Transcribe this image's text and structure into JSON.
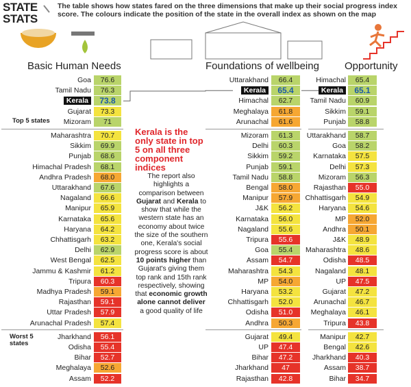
{
  "header": {
    "title": "STATE STATS",
    "description": "The table shows how states fared on the three dimensions that make up their social progress index score. The colours indicate the position of the state in the overall index as shown on the map"
  },
  "group_labels": {
    "top": "Top 5 states",
    "worst": "Worst 5 states"
  },
  "note": {
    "headline": "Kerala is the only state in top 5 on all three component indices",
    "body": [
      {
        "text": "The report also highlights a comparison between ",
        "bold": false
      },
      {
        "text": "Gujarat",
        "bold": true
      },
      {
        "text": " and ",
        "bold": false
      },
      {
        "text": "Kerala",
        "bold": true
      },
      {
        "text": " to show that while the western state has an economy about twice the size of the southern one, Kerala's social progress score is about ",
        "bold": false
      },
      {
        "text": "10 points higher",
        "bold": true
      },
      {
        "text": " than Gujarat's giving them top rank and 15th rank respectively, showing that ",
        "bold": false
      },
      {
        "text": "economic growth alone cannot deliver",
        "bold": true
      },
      {
        "text": " a good quality of life",
        "bold": false
      }
    ]
  },
  "columns": [
    {
      "title": "Basic Human Needs",
      "rows": [
        {
          "state": "Goa",
          "score": "76.6",
          "color": "#b9d46a"
        },
        {
          "state": "Tamil Nadu",
          "score": "76.3",
          "color": "#b9d46a"
        },
        {
          "state": "Kerala",
          "score": "73.8",
          "color": "#b9d46a",
          "highlight": true
        },
        {
          "state": "Gujarat",
          "score": "73.3",
          "color": "#f4e33f"
        },
        {
          "state": "Mizoram",
          "score": "71",
          "color": "#b9d46a"
        },
        {
          "state": "Maharashtra",
          "score": "70.7",
          "color": "#f4e33f"
        },
        {
          "state": "Sikkim",
          "score": "69.9",
          "color": "#b9d46a"
        },
        {
          "state": "Punjab",
          "score": "68.6",
          "color": "#b9d46a"
        },
        {
          "state": "Himachal Pradesh",
          "score": "68.1",
          "color": "#b9d46a"
        },
        {
          "state": "Andhra Pradesh",
          "score": "68.0",
          "color": "#f6a733"
        },
        {
          "state": "Uttarakhand",
          "score": "67.6",
          "color": "#b9d46a"
        },
        {
          "state": "Nagaland",
          "score": "66.6",
          "color": "#f4e33f"
        },
        {
          "state": "Manipur",
          "score": "65.9",
          "color": "#f4e33f"
        },
        {
          "state": "Karnataka",
          "score": "65.6",
          "color": "#f4e33f"
        },
        {
          "state": "Haryana",
          "score": "64.2",
          "color": "#f4e33f"
        },
        {
          "state": "Chhattisgarh",
          "score": "63.2",
          "color": "#f4e33f"
        },
        {
          "state": "Delhi",
          "score": "62.9",
          "color": "#b9d46a"
        },
        {
          "state": "West Bengal",
          "score": "62.5",
          "color": "#f4e33f"
        },
        {
          "state": "Jammu & Kashmir",
          "score": "61.2",
          "color": "#f4e33f"
        },
        {
          "state": "Tripura",
          "score": "60.3",
          "color": "#e63329"
        },
        {
          "state": "Madhya Pradesh",
          "score": "59.1",
          "color": "#f6a733"
        },
        {
          "state": "Rajasthan",
          "score": "59.1",
          "color": "#e63329"
        },
        {
          "state": "Uttar Pradesh",
          "score": "57.9",
          "color": "#e63329"
        },
        {
          "state": "Arunachal Pradesh",
          "score": "57.4",
          "color": "#f4e33f"
        },
        {
          "state": "Jharkhand",
          "score": "56.1",
          "color": "#e63329"
        },
        {
          "state": "Odisha",
          "score": "55.4",
          "color": "#e63329"
        },
        {
          "state": "Bihar",
          "score": "52.7",
          "color": "#e63329"
        },
        {
          "state": "Meghalaya",
          "score": "52.6",
          "color": "#f6a733"
        },
        {
          "state": "Assam",
          "score": "52.2",
          "color": "#e63329"
        }
      ]
    },
    {
      "title": "Foundations of wellbeing",
      "rows": [
        {
          "state": "Uttarakhand",
          "score": "66.4",
          "color": "#b9d46a"
        },
        {
          "state": "Kerala",
          "score": "65.4",
          "color": "#b9d46a",
          "highlight": true
        },
        {
          "state": "Himachal",
          "score": "62.7",
          "color": "#b9d46a"
        },
        {
          "state": "Meghalaya",
          "score": "61.8",
          "color": "#f6a733"
        },
        {
          "state": "Arunachal",
          "score": "61.6",
          "color": "#f6a733"
        },
        {
          "state": "Mizoram",
          "score": "61.3",
          "color": "#b9d46a"
        },
        {
          "state": "Delhi",
          "score": "60.3",
          "color": "#b9d46a"
        },
        {
          "state": "Sikkim",
          "score": "59.2",
          "color": "#b9d46a"
        },
        {
          "state": "Punjab",
          "score": "59.1",
          "color": "#b9d46a"
        },
        {
          "state": "Tamil Nadu",
          "score": "58.8",
          "color": "#b9d46a"
        },
        {
          "state": "Bengal",
          "score": "58.0",
          "color": "#f6a733"
        },
        {
          "state": "Manipur",
          "score": "57.9",
          "color": "#f6a733"
        },
        {
          "state": "J&K",
          "score": "56.2",
          "color": "#f4e33f"
        },
        {
          "state": "Karnataka",
          "score": "56.0",
          "color": "#f4e33f"
        },
        {
          "state": "Nagaland",
          "score": "55.6",
          "color": "#f4e33f"
        },
        {
          "state": "Tripura",
          "score": "55.6",
          "color": "#e63329"
        },
        {
          "state": "Goa",
          "score": "55.4",
          "color": "#b9d46a"
        },
        {
          "state": "Assam",
          "score": "54.7",
          "color": "#e63329"
        },
        {
          "state": "Maharashtra",
          "score": "54.3",
          "color": "#f4e33f"
        },
        {
          "state": "MP",
          "score": "54.0",
          "color": "#f6a733"
        },
        {
          "state": "Haryana",
          "score": "53.2",
          "color": "#f4e33f"
        },
        {
          "state": "Chhattisgarh",
          "score": "52.0",
          "color": "#f4e33f"
        },
        {
          "state": "Odisha",
          "score": "51.0",
          "color": "#e63329"
        },
        {
          "state": "Andhra",
          "score": "50.3",
          "color": "#f6a733"
        },
        {
          "state": "Gujarat",
          "score": "49.4",
          "color": "#f4e33f"
        },
        {
          "state": "UP",
          "score": "47.4",
          "color": "#e63329"
        },
        {
          "state": "Bihar",
          "score": "47.2",
          "color": "#e63329"
        },
        {
          "state": "Jharkhand",
          "score": "47",
          "color": "#e63329"
        },
        {
          "state": "Rajasthan",
          "score": "42.8",
          "color": "#e63329"
        }
      ]
    },
    {
      "title": "Opportunity",
      "rows": [
        {
          "state": "Himachal",
          "score": "65.4",
          "color": "#b9d46a"
        },
        {
          "state": "Kerala",
          "score": "65.1",
          "color": "#b9d46a",
          "highlight": true
        },
        {
          "state": "Tamil Nadu",
          "score": "60.9",
          "color": "#b9d46a"
        },
        {
          "state": "Sikkim",
          "score": "59.1",
          "color": "#b9d46a"
        },
        {
          "state": "Punjab",
          "score": "58.8",
          "color": "#b9d46a"
        },
        {
          "state": "Uttarakhand",
          "score": "58.7",
          "color": "#b9d46a"
        },
        {
          "state": "Goa",
          "score": "58.2",
          "color": "#b9d46a"
        },
        {
          "state": "Karnataka",
          "score": "57.5",
          "color": "#f4e33f"
        },
        {
          "state": "Delhi",
          "score": "57.3",
          "color": "#f4e33f"
        },
        {
          "state": "Mizoram",
          "score": "56.3",
          "color": "#b9d46a"
        },
        {
          "state": "Rajasthan",
          "score": "55.0",
          "color": "#e63329"
        },
        {
          "state": "Chhattisgarh",
          "score": "54.9",
          "color": "#f4e33f"
        },
        {
          "state": "Haryana",
          "score": "54.6",
          "color": "#f4e33f"
        },
        {
          "state": "MP",
          "score": "52.0",
          "color": "#f6a733"
        },
        {
          "state": "Andhra",
          "score": "50.1",
          "color": "#f6a733"
        },
        {
          "state": "J&K",
          "score": "48.9",
          "color": "#f4e33f"
        },
        {
          "state": "Maharashtra",
          "score": "48.6",
          "color": "#f4e33f"
        },
        {
          "state": "Odisha",
          "score": "48.5",
          "color": "#e63329"
        },
        {
          "state": "Nagaland",
          "score": "48.1",
          "color": "#f4e33f"
        },
        {
          "state": "UP",
          "score": "47.5",
          "color": "#e63329"
        },
        {
          "state": "Gujarat",
          "score": "47.2",
          "color": "#f4e33f"
        },
        {
          "state": "Arunachal",
          "score": "46.7",
          "color": "#f4e33f"
        },
        {
          "state": "Meghalaya",
          "score": "46.1",
          "color": "#f4e33f"
        },
        {
          "state": "Tripura",
          "score": "43.8",
          "color": "#e63329"
        },
        {
          "state": "Manipur",
          "score": "42.7",
          "color": "#f4e33f"
        },
        {
          "state": "Bengal",
          "score": "42.6",
          "color": "#f4e33f"
        },
        {
          "state": "Jharkhand",
          "score": "40.3",
          "color": "#e63329"
        },
        {
          "state": "Assam",
          "score": "38.7",
          "color": "#e63329"
        },
        {
          "state": "Bihar",
          "score": "34.7",
          "color": "#e63329"
        }
      ]
    }
  ]
}
